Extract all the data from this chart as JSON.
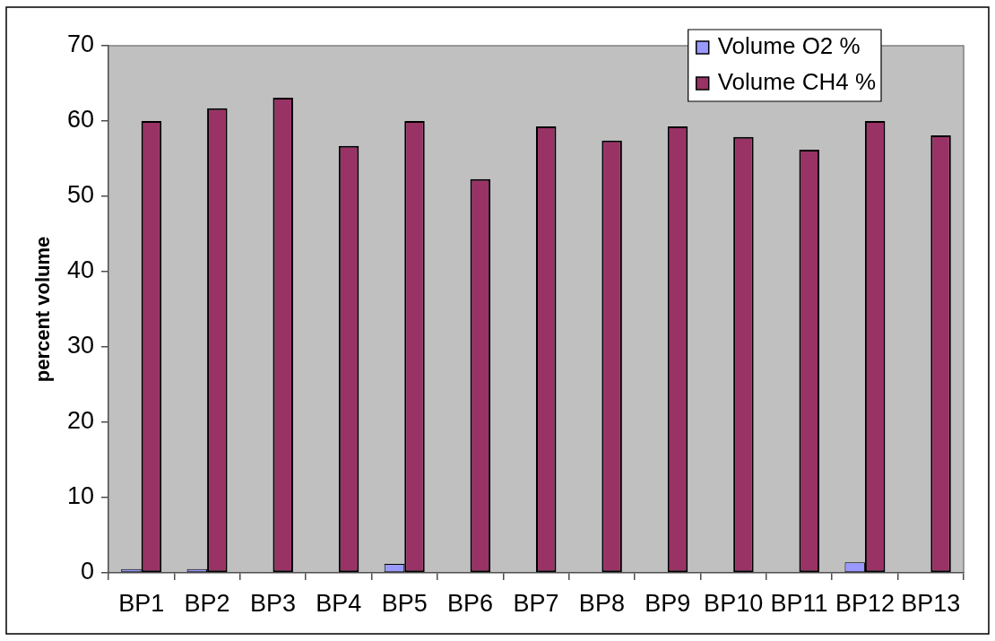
{
  "chart_data": {
    "type": "bar",
    "ylabel": "percent volume",
    "categories": [
      "BP1",
      "BP2",
      "BP3",
      "BP4",
      "BP5",
      "BP6",
      "BP7",
      "BP8",
      "BP9",
      "BP10",
      "BP11",
      "BP12",
      "BP13"
    ],
    "series": [
      {
        "name": "Volume O2 %",
        "color": "#9999ff",
        "values": [
          0.5,
          0.5,
          null,
          null,
          1.2,
          null,
          null,
          null,
          null,
          null,
          null,
          1.4,
          null
        ]
      },
      {
        "name": "Volume CH4 %",
        "color": "#993366",
        "values": [
          60.0,
          61.7,
          63.1,
          56.7,
          60.0,
          52.3,
          59.3,
          57.4,
          59.3,
          57.9,
          56.2,
          60.0,
          58.1
        ]
      }
    ],
    "ylim": [
      0,
      70
    ],
    "yticks": [
      0,
      10,
      20,
      30,
      40,
      50,
      60,
      70
    ],
    "grid": false,
    "legend": "top right"
  }
}
